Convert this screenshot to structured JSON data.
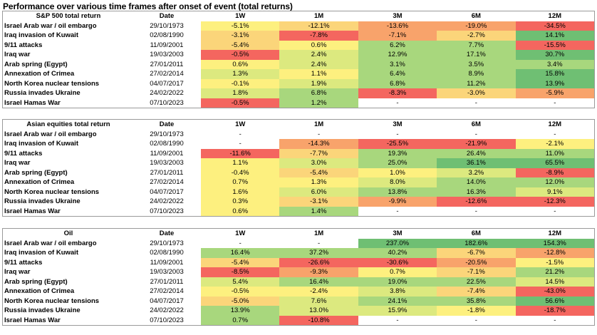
{
  "title": "Performance over various time frames after onset of event (total returns)",
  "colors": {
    "strong_red": "#f4665f",
    "red": "#f8a36b",
    "light_orange": "#fbd57a",
    "yellow": "#fdf07f",
    "light_green": "#dce97f",
    "green": "#a8d77d",
    "strong_green": "#6fbf73",
    "none": "#ffffff"
  },
  "headers": [
    "Date",
    "1W",
    "1M",
    "3M",
    "6M",
    "12M"
  ],
  "sections": [
    {
      "name": "S&P 500 total return",
      "rows": [
        {
          "event": "Israel Arab war / oil embargo",
          "date": "29/10/1973",
          "values": [
            "-5.1%",
            "-12.1%",
            "-13.6%",
            "-19.0%",
            "-34.5%"
          ],
          "colors": [
            "yellow",
            "light_orange",
            "red",
            "red",
            "strong_red"
          ]
        },
        {
          "event": "Iraq invasion of Kuwait",
          "date": "02/08/1990",
          "values": [
            "-3.1%",
            "-7.8%",
            "-7.1%",
            "-2.7%",
            "14.1%"
          ],
          "colors": [
            "light_orange",
            "strong_red",
            "red",
            "light_orange",
            "strong_green"
          ]
        },
        {
          "event": "9/11 attacks",
          "date": "11/09/2001",
          "values": [
            "-5.4%",
            "0.6%",
            "6.2%",
            "7.7%",
            "-15.5%"
          ],
          "colors": [
            "light_orange",
            "yellow",
            "green",
            "green",
            "strong_red"
          ]
        },
        {
          "event": "Iraq war",
          "date": "19/03/2003",
          "values": [
            "-0.5%",
            "2.4%",
            "12.9%",
            "17.1%",
            "30.7%"
          ],
          "colors": [
            "strong_red",
            "light_green",
            "green",
            "green",
            "strong_green"
          ]
        },
        {
          "event": "Arab spring (Egypt)",
          "date": "27/01/2011",
          "values": [
            "0.6%",
            "2.4%",
            "3.1%",
            "3.5%",
            "3.4%"
          ],
          "colors": [
            "yellow",
            "light_green",
            "green",
            "green",
            "green"
          ]
        },
        {
          "event": "Annexation of Crimea",
          "date": "27/02/2014",
          "values": [
            "1.3%",
            "1.1%",
            "6.4%",
            "8.9%",
            "15.8%"
          ],
          "colors": [
            "light_green",
            "yellow",
            "green",
            "green",
            "strong_green"
          ]
        },
        {
          "event": "North Korea nuclear tensions",
          "date": "04/07/2017",
          "values": [
            "-0.1%",
            "1.9%",
            "6.8%",
            "11.2%",
            "13.9%"
          ],
          "colors": [
            "yellow",
            "light_green",
            "green",
            "green",
            "strong_green"
          ]
        },
        {
          "event": "Russia invades Ukraine",
          "date": "24/02/2022",
          "values": [
            "1.8%",
            "6.8%",
            "-8.3%",
            "-3.0%",
            "-5.9%"
          ],
          "colors": [
            "light_green",
            "green",
            "strong_red",
            "light_orange",
            "red"
          ]
        },
        {
          "event": "Israel Hamas War",
          "date": "07/10/2023",
          "values": [
            "-0.5%",
            "1.2%",
            "-",
            "-",
            "-"
          ],
          "colors": [
            "strong_red",
            "green",
            "none",
            "none",
            "none"
          ]
        }
      ]
    },
    {
      "name": "Asian equities total return",
      "rows": [
        {
          "event": "Israel Arab war / oil embargo",
          "date": "29/10/1973",
          "values": [
            "-",
            "-",
            "-",
            "-",
            "-"
          ],
          "colors": [
            "none",
            "none",
            "none",
            "none",
            "none"
          ]
        },
        {
          "event": "Iraq invasion of Kuwait",
          "date": "02/08/1990",
          "values": [
            "-",
            "-14.3%",
            "-25.5%",
            "-21.9%",
            "-2.1%"
          ],
          "colors": [
            "none",
            "red",
            "strong_red",
            "strong_red",
            "yellow"
          ]
        },
        {
          "event": "9/11 attacks",
          "date": "11/09/2001",
          "values": [
            "-11.6%",
            "-7.7%",
            "19.3%",
            "26.4%",
            "11.0%"
          ],
          "colors": [
            "strong_red",
            "light_orange",
            "green",
            "green",
            "green"
          ]
        },
        {
          "event": "Iraq war",
          "date": "19/03/2003",
          "values": [
            "1.1%",
            "3.0%",
            "25.0%",
            "36.1%",
            "65.5%"
          ],
          "colors": [
            "yellow",
            "light_green",
            "green",
            "strong_green",
            "strong_green"
          ]
        },
        {
          "event": "Arab spring (Egypt)",
          "date": "27/01/2011",
          "values": [
            "-0.4%",
            "-5.4%",
            "1.0%",
            "3.2%",
            "-8.9%"
          ],
          "colors": [
            "yellow",
            "light_orange",
            "yellow",
            "light_green",
            "strong_red"
          ]
        },
        {
          "event": "Annexation of Crimea",
          "date": "27/02/2014",
          "values": [
            "0.7%",
            "1.3%",
            "8.0%",
            "14.0%",
            "12.0%"
          ],
          "colors": [
            "yellow",
            "yellow",
            "light_green",
            "green",
            "green"
          ]
        },
        {
          "event": "North Korea nuclear tensions",
          "date": "04/07/2017",
          "values": [
            "1.6%",
            "6.0%",
            "13.8%",
            "16.3%",
            "9.1%"
          ],
          "colors": [
            "yellow",
            "light_green",
            "green",
            "green",
            "light_green"
          ]
        },
        {
          "event": "Russia invades Ukraine",
          "date": "24/02/2022",
          "values": [
            "0.3%",
            "-3.1%",
            "-9.9%",
            "-12.6%",
            "-12.3%"
          ],
          "colors": [
            "yellow",
            "light_orange",
            "red",
            "strong_red",
            "strong_red"
          ]
        },
        {
          "event": "Israel Hamas War",
          "date": "07/10/2023",
          "values": [
            "0.6%",
            "1.4%",
            "-",
            "-",
            "-"
          ],
          "colors": [
            "yellow",
            "green",
            "none",
            "none",
            "none"
          ]
        }
      ]
    },
    {
      "name": "Oil",
      "rows": [
        {
          "event": "Israel Arab war / oil embargo",
          "date": "29/10/1973",
          "values": [
            "-",
            "-",
            "237.0%",
            "182.6%",
            "154.3%"
          ],
          "colors": [
            "none",
            "none",
            "strong_green",
            "strong_green",
            "strong_green"
          ]
        },
        {
          "event": "Iraq invasion of Kuwait",
          "date": "02/08/1990",
          "values": [
            "16.4%",
            "37.2%",
            "40.2%",
            "-6.7%",
            "-12.8%"
          ],
          "colors": [
            "green",
            "green",
            "green",
            "light_orange",
            "red"
          ]
        },
        {
          "event": "9/11 attacks",
          "date": "11/09/2001",
          "values": [
            "-5.4%",
            "-26.6%",
            "-30.6%",
            "-20.5%",
            "-1.5%"
          ],
          "colors": [
            "light_orange",
            "strong_red",
            "strong_red",
            "red",
            "yellow"
          ]
        },
        {
          "event": "Iraq war",
          "date": "19/03/2003",
          "values": [
            "-8.5%",
            "-9.3%",
            "0.7%",
            "-7.1%",
            "21.2%"
          ],
          "colors": [
            "strong_red",
            "red",
            "yellow",
            "light_orange",
            "green"
          ]
        },
        {
          "event": "Arab spring (Egypt)",
          "date": "27/01/2011",
          "values": [
            "5.4%",
            "16.4%",
            "19.0%",
            "22.5%",
            "14.5%"
          ],
          "colors": [
            "light_green",
            "green",
            "green",
            "green",
            "light_green"
          ]
        },
        {
          "event": "Annexation of Crimea",
          "date": "27/02/2014",
          "values": [
            "-0.5%",
            "-2.4%",
            "3.8%",
            "-7.4%",
            "-43.0%"
          ],
          "colors": [
            "yellow",
            "yellow",
            "light_green",
            "light_orange",
            "strong_red"
          ]
        },
        {
          "event": "North Korea nuclear tensions",
          "date": "04/07/2017",
          "values": [
            "-5.0%",
            "7.6%",
            "24.1%",
            "35.8%",
            "56.6%"
          ],
          "colors": [
            "light_orange",
            "light_green",
            "green",
            "green",
            "strong_green"
          ]
        },
        {
          "event": "Russia invades Ukraine",
          "date": "24/02/2022",
          "values": [
            "13.9%",
            "13.0%",
            "15.9%",
            "-1.8%",
            "-18.7%"
          ],
          "colors": [
            "green",
            "light_green",
            "light_green",
            "yellow",
            "strong_red"
          ]
        },
        {
          "event": "Israel Hamas War",
          "date": "07/10/2023",
          "values": [
            "0.7%",
            "-10.8%",
            "-",
            "-",
            "-"
          ],
          "colors": [
            "green",
            "strong_red",
            "none",
            "none",
            "none"
          ]
        }
      ]
    }
  ]
}
